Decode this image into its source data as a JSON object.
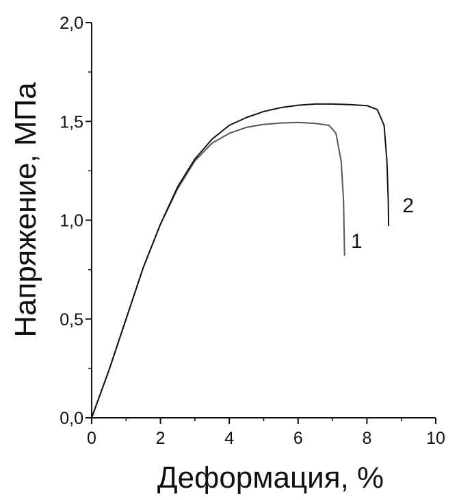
{
  "chart_data": {
    "type": "line",
    "xlabel": "Деформация, %",
    "ylabel": "Напряжение, МПа",
    "xlim": [
      0,
      10
    ],
    "ylim": [
      0,
      2.0
    ],
    "x_ticks": [
      0,
      2,
      4,
      6,
      8,
      10
    ],
    "x_tick_labels": [
      "0",
      "2",
      "4",
      "6",
      "8",
      "10"
    ],
    "y_ticks": [
      0,
      0.5,
      1.0,
      1.5,
      2.0
    ],
    "y_tick_labels": [
      "0,0",
      "0,5",
      "1,0",
      "1,5",
      "2,0"
    ],
    "grid": false,
    "series": [
      {
        "name": "1",
        "color": "#555555",
        "points": [
          [
            0,
            0
          ],
          [
            0.5,
            0.24
          ],
          [
            1,
            0.5
          ],
          [
            1.5,
            0.76
          ],
          [
            2,
            0.98
          ],
          [
            2.5,
            1.16
          ],
          [
            3,
            1.3
          ],
          [
            3.5,
            1.39
          ],
          [
            4,
            1.44
          ],
          [
            4.5,
            1.47
          ],
          [
            5,
            1.485
          ],
          [
            5.5,
            1.492
          ],
          [
            6,
            1.495
          ],
          [
            6.5,
            1.49
          ],
          [
            6.9,
            1.48
          ],
          [
            7.1,
            1.44
          ],
          [
            7.25,
            1.3
          ],
          [
            7.32,
            1.1
          ],
          [
            7.35,
            0.82
          ]
        ]
      },
      {
        "name": "2",
        "color": "#111111",
        "points": [
          [
            0,
            0
          ],
          [
            0.5,
            0.24
          ],
          [
            1,
            0.5
          ],
          [
            1.5,
            0.76
          ],
          [
            2,
            0.98
          ],
          [
            2.5,
            1.17
          ],
          [
            3,
            1.31
          ],
          [
            3.5,
            1.41
          ],
          [
            4,
            1.48
          ],
          [
            4.5,
            1.52
          ],
          [
            5,
            1.55
          ],
          [
            5.5,
            1.57
          ],
          [
            6,
            1.582
          ],
          [
            6.5,
            1.588
          ],
          [
            7,
            1.588
          ],
          [
            7.5,
            1.585
          ],
          [
            8,
            1.58
          ],
          [
            8.3,
            1.56
          ],
          [
            8.5,
            1.48
          ],
          [
            8.58,
            1.3
          ],
          [
            8.62,
            1.1
          ],
          [
            8.63,
            0.97
          ]
        ]
      }
    ],
    "annotations": [
      {
        "text": "1",
        "x": 7.7,
        "y": 0.86
      },
      {
        "text": "2",
        "x": 9.2,
        "y": 1.04
      }
    ]
  }
}
